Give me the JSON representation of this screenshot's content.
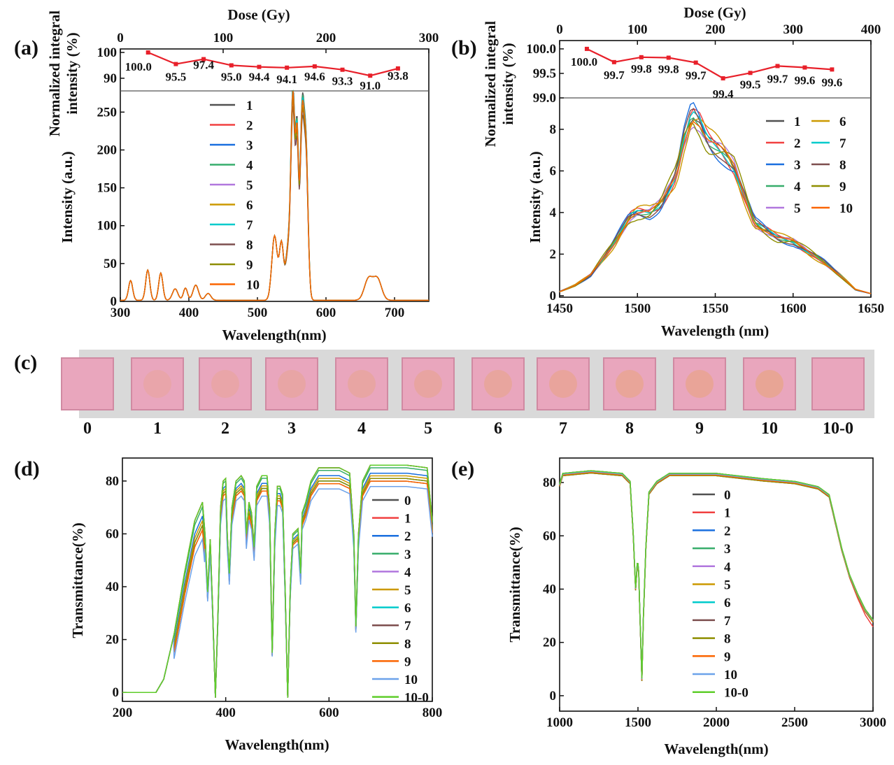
{
  "panels": {
    "a": {
      "label": "(a)",
      "xlabel": "Wavelength(nm)",
      "ylabel": "Intensity (a.u.)",
      "inset_ylabel_1": "Normalized integral",
      "inset_ylabel_2": "intensity (%)",
      "dose_label": "Dose (Gy)"
    },
    "b": {
      "label": "(b)",
      "xlabel": "Wavelength (nm)",
      "ylabel": "Intensity (a.u.)",
      "inset_ylabel_1": "Normalized integral",
      "inset_ylabel_2": "intensity (%)",
      "dose_label": "Dose (Gy)"
    },
    "c": {
      "label": "(c)",
      "samples": [
        "0",
        "1",
        "2",
        "3",
        "4",
        "5",
        "6",
        "7",
        "8",
        "9",
        "10",
        "10-0"
      ],
      "colors": {
        "glass": "#e9a6bd",
        "spot": "#e8a48e",
        "background": "#d9d9d9"
      }
    },
    "d": {
      "label": "(d)",
      "xlabel": "Wavelength(nm)",
      "ylabel": "Transmittance(%)"
    },
    "e": {
      "label": "(e)",
      "xlabel": "Wavelength(nm)",
      "ylabel": "Transmittance(%)"
    }
  },
  "chart_data": [
    {
      "id": "a-inset",
      "type": "line",
      "xlabel": "Dose (Gy)",
      "ylabel": "Normalized integral intensity (%)",
      "xlim": [
        0,
        300
      ],
      "ylim": [
        85.1,
        101.35
      ],
      "xticks": [
        0,
        100,
        200,
        300
      ],
      "yticks": [
        90,
        100
      ],
      "x": [
        27,
        54,
        81,
        108,
        135,
        162,
        189,
        216,
        243,
        270
      ],
      "y": [
        100.0,
        95.5,
        97.4,
        95.0,
        94.4,
        94.1,
        94.6,
        93.3,
        91.0,
        93.8
      ],
      "data_labels": [
        "100.0",
        "95.5",
        "97.4",
        "95.0",
        "94.4",
        "94.1",
        "94.6",
        "93.3",
        "91.0",
        "93.8"
      ],
      "color": "#e8202a"
    },
    {
      "id": "a-main",
      "type": "line",
      "xlabel": "Wavelength(nm)",
      "ylabel": "Intensity (a.u.)",
      "xlim": [
        300,
        750
      ],
      "ylim": [
        0,
        278
      ],
      "xticks": [
        300,
        400,
        500,
        600,
        700
      ],
      "yticks": [
        0,
        50,
        100,
        150,
        200,
        250
      ],
      "peaks_center_height_width": [
        [
          315,
          26,
          3
        ],
        [
          340,
          40,
          3
        ],
        [
          359,
          36,
          3
        ],
        [
          380,
          15,
          4
        ],
        [
          395,
          16,
          3
        ],
        [
          410,
          20,
          4
        ],
        [
          428,
          9,
          4
        ],
        [
          525,
          85,
          4
        ],
        [
          535,
          72,
          3
        ],
        [
          545,
          70,
          4
        ],
        [
          552,
          270,
          3
        ],
        [
          558,
          190,
          2
        ],
        [
          565,
          240,
          3
        ],
        [
          571,
          190,
          3
        ],
        [
          662,
          28,
          6
        ],
        [
          675,
          28,
          6
        ]
      ],
      "series": [
        {
          "name": "1",
          "color": "#515151"
        },
        {
          "name": "2",
          "color": "#f14040"
        },
        {
          "name": "3",
          "color": "#1a6fdf"
        },
        {
          "name": "4",
          "color": "#37ad6b"
        },
        {
          "name": "5",
          "color": "#b177de"
        },
        {
          "name": "6",
          "color": "#cc9900"
        },
        {
          "name": "7",
          "color": "#00cbcc"
        },
        {
          "name": "8",
          "color": "#7d4e4e"
        },
        {
          "name": "9",
          "color": "#8e8e00"
        },
        {
          "name": "10",
          "color": "#fb6501"
        }
      ]
    },
    {
      "id": "b-inset",
      "type": "line",
      "xlabel": "Dose (Gy)",
      "ylabel": "Normalized integral intensity (%)",
      "xlim": [
        0,
        400
      ],
      "ylim": [
        99.0,
        100.17
      ],
      "xticks": [
        0,
        100,
        200,
        300,
        400
      ],
      "yticks": [
        99.0,
        99.5,
        100.0
      ],
      "x": [
        35,
        70,
        105,
        140,
        175,
        210,
        245,
        280,
        315,
        350
      ],
      "y": [
        100.0,
        99.73,
        99.83,
        99.82,
        99.72,
        99.4,
        99.51,
        99.65,
        99.62,
        99.58
      ],
      "data_labels": [
        "100.0",
        "99.7",
        "99.8",
        "99.8",
        "99.7",
        "99.4",
        "99.5",
        "99.7",
        "99.6",
        "99.6"
      ],
      "color": "#e8202a"
    },
    {
      "id": "b-main",
      "type": "line",
      "xlabel": "Wavelength (nm)",
      "ylabel": "Intensity (a.u.)",
      "xlim": [
        1450,
        1650
      ],
      "ylim": [
        -0.07,
        9.51
      ],
      "xticks": [
        1450,
        1500,
        1550,
        1600,
        1650
      ],
      "yticks": [
        0,
        2,
        4,
        6,
        8
      ],
      "curve": [
        [
          1450,
          0.2
        ],
        [
          1460,
          0.5
        ],
        [
          1470,
          1.0
        ],
        [
          1485,
          2.5
        ],
        [
          1495,
          3.8
        ],
        [
          1500,
          4.0
        ],
        [
          1508,
          4.0
        ],
        [
          1515,
          4.4
        ],
        [
          1525,
          5.8
        ],
        [
          1530,
          7.5
        ],
        [
          1535,
          8.7
        ],
        [
          1540,
          8.3
        ],
        [
          1545,
          7.5
        ],
        [
          1555,
          6.9
        ],
        [
          1562,
          6.2
        ],
        [
          1575,
          3.5
        ],
        [
          1590,
          2.8
        ],
        [
          1600,
          2.6
        ],
        [
          1610,
          2.1
        ],
        [
          1620,
          1.6
        ],
        [
          1630,
          1.0
        ],
        [
          1640,
          0.3
        ],
        [
          1650,
          0.1
        ]
      ],
      "series": [
        {
          "name": "1",
          "color": "#515151"
        },
        {
          "name": "2",
          "color": "#f14040"
        },
        {
          "name": "3",
          "color": "#1a6fdf"
        },
        {
          "name": "4",
          "color": "#37ad6b"
        },
        {
          "name": "5",
          "color": "#b177de"
        },
        {
          "name": "6",
          "color": "#cc9900"
        },
        {
          "name": "7",
          "color": "#00cbcc"
        },
        {
          "name": "8",
          "color": "#7d4e4e"
        },
        {
          "name": "9",
          "color": "#8e8e00"
        },
        {
          "name": "10",
          "color": "#fb6501"
        }
      ]
    },
    {
      "id": "d",
      "type": "line",
      "xlabel": "Wavelength(nm)",
      "ylabel": "Transmittance(%)",
      "xlim": [
        200,
        800
      ],
      "ylim": [
        -3.4,
        88.7
      ],
      "xticks": [
        200,
        400,
        600,
        800
      ],
      "yticks": [
        0,
        20,
        40,
        60,
        80
      ],
      "curve": [
        [
          200,
          0
        ],
        [
          265,
          0
        ],
        [
          280,
          5
        ],
        [
          300,
          22
        ],
        [
          320,
          45
        ],
        [
          340,
          65
        ],
        [
          355,
          72
        ],
        [
          360,
          60
        ],
        [
          365,
          38
        ],
        [
          370,
          58
        ],
        [
          375,
          30
        ],
        [
          380,
          -2
        ],
        [
          385,
          30
        ],
        [
          390,
          70
        ],
        [
          395,
          80
        ],
        [
          400,
          81
        ],
        [
          403,
          60
        ],
        [
          407,
          45
        ],
        [
          412,
          70
        ],
        [
          420,
          80
        ],
        [
          430,
          82
        ],
        [
          436,
          80
        ],
        [
          440,
          60
        ],
        [
          445,
          72
        ],
        [
          450,
          68
        ],
        [
          455,
          55
        ],
        [
          460,
          78
        ],
        [
          470,
          82
        ],
        [
          480,
          82
        ],
        [
          485,
          70
        ],
        [
          490,
          15
        ],
        [
          495,
          60
        ],
        [
          500,
          78
        ],
        [
          505,
          78
        ],
        [
          510,
          75
        ],
        [
          515,
          40
        ],
        [
          520,
          -2
        ],
        [
          525,
          40
        ],
        [
          530,
          60
        ],
        [
          540,
          62
        ],
        [
          545,
          45
        ],
        [
          548,
          68
        ],
        [
          555,
          72
        ],
        [
          565,
          80
        ],
        [
          580,
          85
        ],
        [
          620,
          85
        ],
        [
          640,
          83
        ],
        [
          648,
          60
        ],
        [
          652,
          25
        ],
        [
          657,
          60
        ],
        [
          665,
          80
        ],
        [
          680,
          86
        ],
        [
          750,
          86
        ],
        [
          790,
          85
        ],
        [
          800,
          65
        ]
      ],
      "series": [
        {
          "name": "0",
          "color": "#515151",
          "level": 85
        },
        {
          "name": "1",
          "color": "#f14040",
          "level": 85
        },
        {
          "name": "2",
          "color": "#1a6fdf",
          "level": 82
        },
        {
          "name": "3",
          "color": "#37ad6b",
          "level": 84
        },
        {
          "name": "4",
          "color": "#b177de",
          "level": 80
        },
        {
          "name": "5",
          "color": "#cc9900",
          "level": 81
        },
        {
          "name": "6",
          "color": "#00cbcc",
          "level": 80
        },
        {
          "name": "7",
          "color": "#7d4e4e",
          "level": 79
        },
        {
          "name": "8",
          "color": "#8e8e00",
          "level": 80
        },
        {
          "name": "9",
          "color": "#fb6501",
          "level": 79
        },
        {
          "name": "10",
          "color": "#6ca2ea",
          "level": 77
        },
        {
          "name": "10-0",
          "color": "#5ecd2a",
          "level": 85
        }
      ]
    },
    {
      "id": "e",
      "type": "line",
      "xlabel": "Wavelength(nm)",
      "ylabel": "Transmittance(%)",
      "xlim": [
        1000,
        3000
      ],
      "ylim": [
        -5.8,
        89.2
      ],
      "xticks": [
        1000,
        1500,
        2000,
        2500,
        3000
      ],
      "yticks": [
        0,
        20,
        40,
        60,
        80
      ],
      "curve": [
        [
          1000,
          79
        ],
        [
          1020,
          83
        ],
        [
          1200,
          84
        ],
        [
          1400,
          83
        ],
        [
          1450,
          80
        ],
        [
          1470,
          60
        ],
        [
          1485,
          40
        ],
        [
          1497,
          51
        ],
        [
          1505,
          46
        ],
        [
          1515,
          25
        ],
        [
          1525,
          6
        ],
        [
          1535,
          30
        ],
        [
          1550,
          55
        ],
        [
          1570,
          76
        ],
        [
          1620,
          80
        ],
        [
          1700,
          83
        ],
        [
          2000,
          83
        ],
        [
          2300,
          81
        ],
        [
          2500,
          80
        ],
        [
          2650,
          78
        ],
        [
          2720,
          75
        ],
        [
          2760,
          65
        ],
        [
          2800,
          55
        ],
        [
          2850,
          45
        ],
        [
          2900,
          38
        ],
        [
          2950,
          32
        ],
        [
          3000,
          28
        ]
      ],
      "series": [
        {
          "name": "0",
          "color": "#515151"
        },
        {
          "name": "1",
          "color": "#f14040"
        },
        {
          "name": "2",
          "color": "#1a6fdf"
        },
        {
          "name": "3",
          "color": "#37ad6b"
        },
        {
          "name": "4",
          "color": "#b177de"
        },
        {
          "name": "5",
          "color": "#cc9900"
        },
        {
          "name": "6",
          "color": "#00cbcc"
        },
        {
          "name": "7",
          "color": "#7d4e4e"
        },
        {
          "name": "8",
          "color": "#8e8e00"
        },
        {
          "name": "9",
          "color": "#fb6501"
        },
        {
          "name": "10",
          "color": "#6ca2ea"
        },
        {
          "name": "10-0",
          "color": "#5ecd2a"
        }
      ]
    }
  ]
}
